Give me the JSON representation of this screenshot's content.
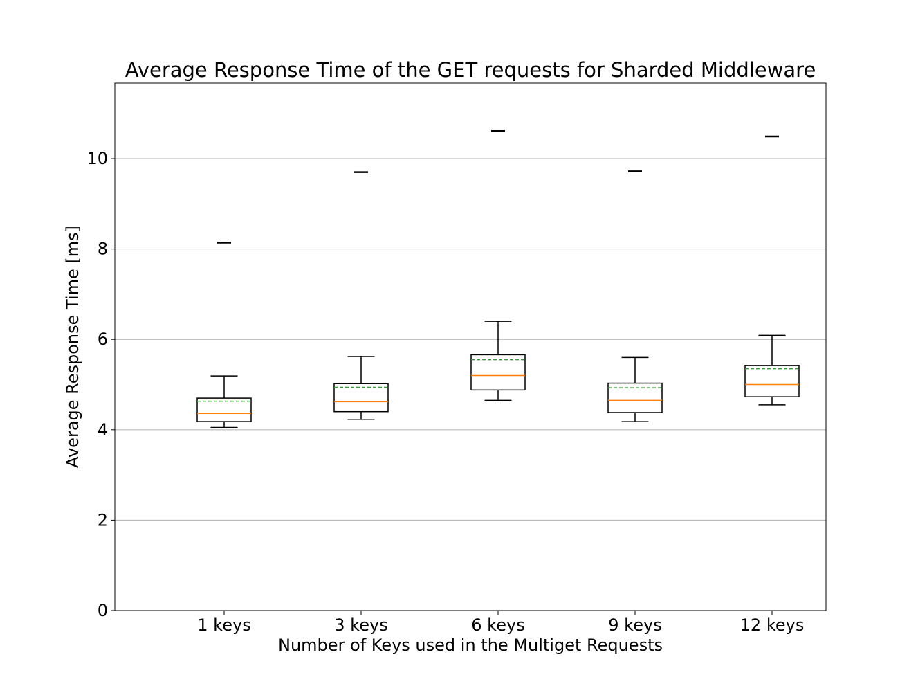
{
  "chart_data": {
    "type": "box",
    "title": "Average Response Time of the GET requests for Sharded Middleware",
    "xlabel": "Number of Keys used in the Multiget Requests",
    "ylabel": "Average Response Time [ms]",
    "ylim": [
      0,
      11.67
    ],
    "yticks": [
      0,
      2,
      4,
      6,
      8,
      10
    ],
    "grid": "y",
    "legend": "none",
    "categories": [
      "1 keys",
      "3 keys",
      "6 keys",
      "9 keys",
      "12 keys"
    ],
    "boxes": [
      {
        "whisker_low": 4.05,
        "q1": 4.18,
        "median": 4.36,
        "mean": 4.63,
        "q3": 4.7,
        "whisker_high": 5.19,
        "outliers": [
          8.14
        ]
      },
      {
        "whisker_low": 4.23,
        "q1": 4.4,
        "median": 4.62,
        "mean": 4.94,
        "q3": 5.02,
        "whisker_high": 5.62,
        "outliers": [
          9.7
        ]
      },
      {
        "whisker_low": 4.65,
        "q1": 4.88,
        "median": 5.2,
        "mean": 5.55,
        "q3": 5.66,
        "whisker_high": 6.4,
        "outliers": [
          10.61
        ]
      },
      {
        "whisker_low": 4.18,
        "q1": 4.38,
        "median": 4.65,
        "mean": 4.93,
        "q3": 5.03,
        "whisker_high": 5.6,
        "outliers": [
          9.72
        ]
      },
      {
        "whisker_low": 4.55,
        "q1": 4.73,
        "median": 5.0,
        "mean": 5.35,
        "q3": 5.42,
        "whisker_high": 6.09,
        "outliers": [
          10.49
        ]
      }
    ],
    "colors": {
      "box": "#000000",
      "median": "#ff7f0e",
      "mean": "#2ca02c",
      "grid": "#b0b0b0"
    }
  }
}
